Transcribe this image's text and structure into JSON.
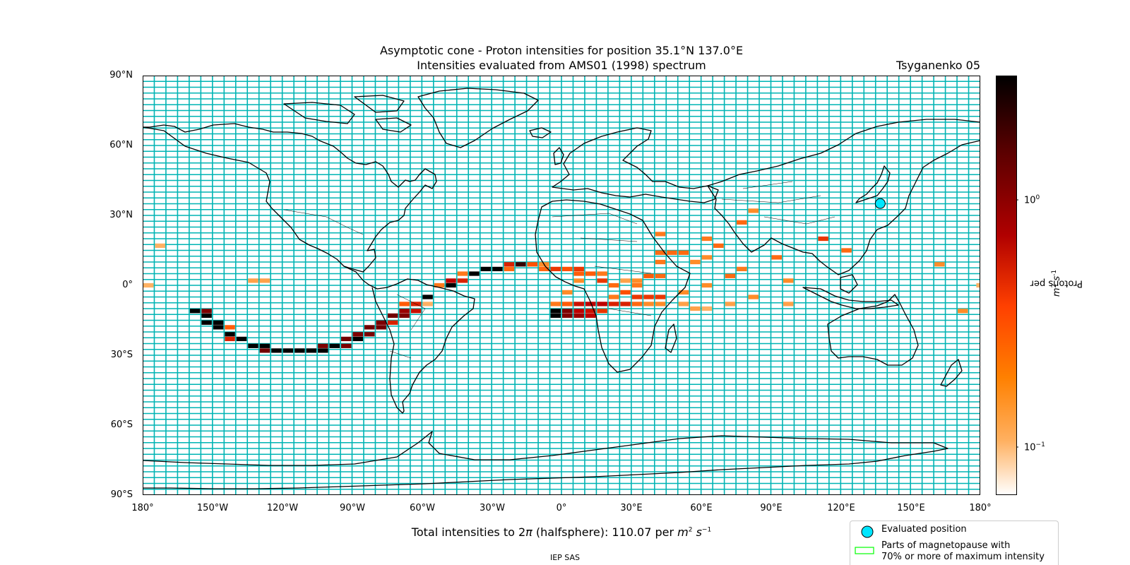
{
  "header": {
    "title_line1": "Asymptotic cone - Proton intensities for position 35.1°N 137.0°E",
    "title_line2": "Intensities evaluated from AMS01 (1998) spectrum",
    "model": "Tsyganenko 05"
  },
  "axes": {
    "lat_ticks": [
      "90°N",
      "60°N",
      "30°N",
      "0°",
      "30°S",
      "60°S",
      "90°S"
    ],
    "lon_ticks": [
      "180°",
      "150°W",
      "120°W",
      "90°W",
      "60°W",
      "30°W",
      "0°",
      "30°E",
      "60°E",
      "90°E",
      "120°E",
      "150°E",
      "180°"
    ]
  },
  "colorbar": {
    "label_main": "Protons per ",
    "label_unit": "m",
    "label_unit_exp": "2",
    "label_unit2": " s",
    "label_unit2_exp": "-1",
    "tick_high_base": "10",
    "tick_high_exp": "0",
    "tick_low_base": "10",
    "tick_low_exp": "−1",
    "colors": [
      "#000000",
      "#5a0000",
      "#b00000",
      "#ff4000",
      "#ff8000",
      "#ffb060",
      "#ffffff"
    ]
  },
  "footer": {
    "total_prefix": "Total intensities to 2",
    "total_pi": "π",
    "total_mid": " (halfsphere): 110.07 per ",
    "total_unit": "m",
    "total_exp1": "2",
    "total_unit2": " s",
    "total_exp2": "−1",
    "credit": "IEP SAS"
  },
  "legend": {
    "evaluated": "Evaluated position",
    "magnetopause_line1": "Parts of magnetopause with",
    "magnetopause_line2": "70% or more of maximum intensity"
  },
  "map_data": {
    "evaluated_position": {
      "lat": 35.1,
      "lon": 137.0
    },
    "colors": {
      "grid": "#00b4b4",
      "marker": "#00e6ff",
      "magnetopause": "#00ff00"
    },
    "cells": [
      [
        -175,
        17,
        0.12
      ],
      [
        -180,
        0,
        0.12
      ],
      [
        178,
        0,
        0.12
      ],
      [
        -135,
        2,
        0.15
      ],
      [
        -130,
        2,
        0.15
      ],
      [
        -160,
        -11,
        5
      ],
      [
        -155,
        -11,
        1.2
      ],
      [
        -155,
        -13,
        5
      ],
      [
        -155,
        -16,
        5
      ],
      [
        -150,
        -18,
        5
      ],
      [
        -150,
        -16,
        3
      ],
      [
        -145,
        -18,
        0.35
      ],
      [
        -145,
        -21,
        5
      ],
      [
        -145,
        -23,
        0.6
      ],
      [
        -140,
        -23,
        5
      ],
      [
        -135,
        -26,
        5
      ],
      [
        -130,
        -26,
        5
      ],
      [
        -130,
        -28,
        1.3
      ],
      [
        -125,
        -28,
        5
      ],
      [
        -120,
        -28,
        5
      ],
      [
        -115,
        -28,
        5
      ],
      [
        -110,
        -28,
        5
      ],
      [
        -105,
        -28,
        5
      ],
      [
        -105,
        -26,
        1.2
      ],
      [
        -100,
        -26,
        5
      ],
      [
        -95,
        -26,
        1.2
      ],
      [
        -95,
        -23,
        1.3
      ],
      [
        -90,
        -23,
        5
      ],
      [
        -90,
        -21,
        1.2
      ],
      [
        -85,
        -21,
        1.2
      ],
      [
        -85,
        -18,
        1.3
      ],
      [
        -80,
        -18,
        1.3
      ],
      [
        -80,
        -16,
        1.2
      ],
      [
        -75,
        -16,
        0.6
      ],
      [
        -75,
        -13,
        1.3
      ],
      [
        -70,
        -13,
        1.2
      ],
      [
        -70,
        -11,
        1.0
      ],
      [
        -65,
        -11,
        0.7
      ],
      [
        -65,
        -8,
        0.6
      ],
      [
        -70,
        -8,
        0.35
      ],
      [
        -60,
        -8,
        0.12
      ],
      [
        -60,
        -5,
        5
      ],
      [
        -55,
        0,
        0.25
      ],
      [
        -50,
        0,
        5
      ],
      [
        -50,
        2,
        0.8
      ],
      [
        -45,
        2,
        0.6
      ],
      [
        -45,
        5,
        0.25
      ],
      [
        -40,
        5,
        3
      ],
      [
        -35,
        7,
        3
      ],
      [
        -30,
        7,
        3
      ],
      [
        -25,
        7,
        0.3
      ],
      [
        -25,
        9,
        0.6
      ],
      [
        -20,
        9,
        2
      ],
      [
        -15,
        9,
        0.4
      ],
      [
        -10,
        9,
        0.2
      ],
      [
        -10,
        7,
        0.3
      ],
      [
        -5,
        7,
        0.5
      ],
      [
        0,
        7,
        0.4
      ],
      [
        5,
        7,
        0.5
      ],
      [
        5,
        5,
        0.35
      ],
      [
        10,
        5,
        0.35
      ],
      [
        5,
        2,
        0.2
      ],
      [
        15,
        2,
        0.5
      ],
      [
        15,
        5,
        0.25
      ],
      [
        20,
        0,
        0.3
      ],
      [
        25,
        -3,
        0.4
      ],
      [
        20,
        -5,
        0.25
      ],
      [
        30,
        -5,
        0.5
      ],
      [
        35,
        -5,
        0.5
      ],
      [
        40,
        -5,
        0.5
      ],
      [
        30,
        0,
        0.25
      ],
      [
        30,
        2,
        0.2
      ],
      [
        25,
        2,
        0.15
      ],
      [
        0,
        -3,
        0.2
      ],
      [
        -5,
        -8,
        0.25
      ],
      [
        0,
        -8,
        0.35
      ],
      [
        5,
        -8,
        0.7
      ],
      [
        10,
        -8,
        0.8
      ],
      [
        15,
        -8,
        0.8
      ],
      [
        20,
        -8,
        0.6
      ],
      [
        25,
        -8,
        0.6
      ],
      [
        30,
        -8,
        0.3
      ],
      [
        35,
        -8,
        0.2
      ],
      [
        40,
        -8,
        0.2
      ],
      [
        -5,
        -11,
        5
      ],
      [
        0,
        -11,
        1.2
      ],
      [
        5,
        -11,
        0.8
      ],
      [
        10,
        -11,
        0.7
      ],
      [
        15,
        -11,
        0.5
      ],
      [
        -5,
        -13,
        5
      ],
      [
        0,
        -13,
        1.2
      ],
      [
        5,
        -13,
        1.0
      ],
      [
        10,
        -13,
        0.8
      ],
      [
        40,
        22,
        0.25
      ],
      [
        40,
        14,
        0.3
      ],
      [
        35,
        4,
        0.35
      ],
      [
        40,
        4,
        0.3
      ],
      [
        45,
        14,
        0.3
      ],
      [
        50,
        14,
        0.3
      ],
      [
        40,
        10,
        0.25
      ],
      [
        60,
        20,
        0.25
      ],
      [
        65,
        17,
        0.3
      ],
      [
        60,
        12,
        0.2
      ],
      [
        55,
        10,
        0.2
      ],
      [
        70,
        4,
        0.3
      ],
      [
        75,
        7,
        0.25
      ],
      [
        75,
        27,
        0.3
      ],
      [
        80,
        32,
        0.2
      ],
      [
        90,
        12,
        0.3
      ],
      [
        95,
        2,
        0.2
      ],
      [
        110,
        20,
        0.5
      ],
      [
        120,
        15,
        0.3
      ],
      [
        160,
        9,
        0.2
      ],
      [
        170,
        -11,
        0.2
      ],
      [
        50,
        -3,
        0.2
      ],
      [
        50,
        -8,
        0.15
      ],
      [
        55,
        -10,
        0.15
      ],
      [
        60,
        -10,
        0.12
      ],
      [
        60,
        0,
        0.2
      ],
      [
        70,
        -8,
        0.15
      ],
      [
        80,
        -5,
        0.2
      ],
      [
        95,
        -8,
        0.15
      ]
    ]
  }
}
